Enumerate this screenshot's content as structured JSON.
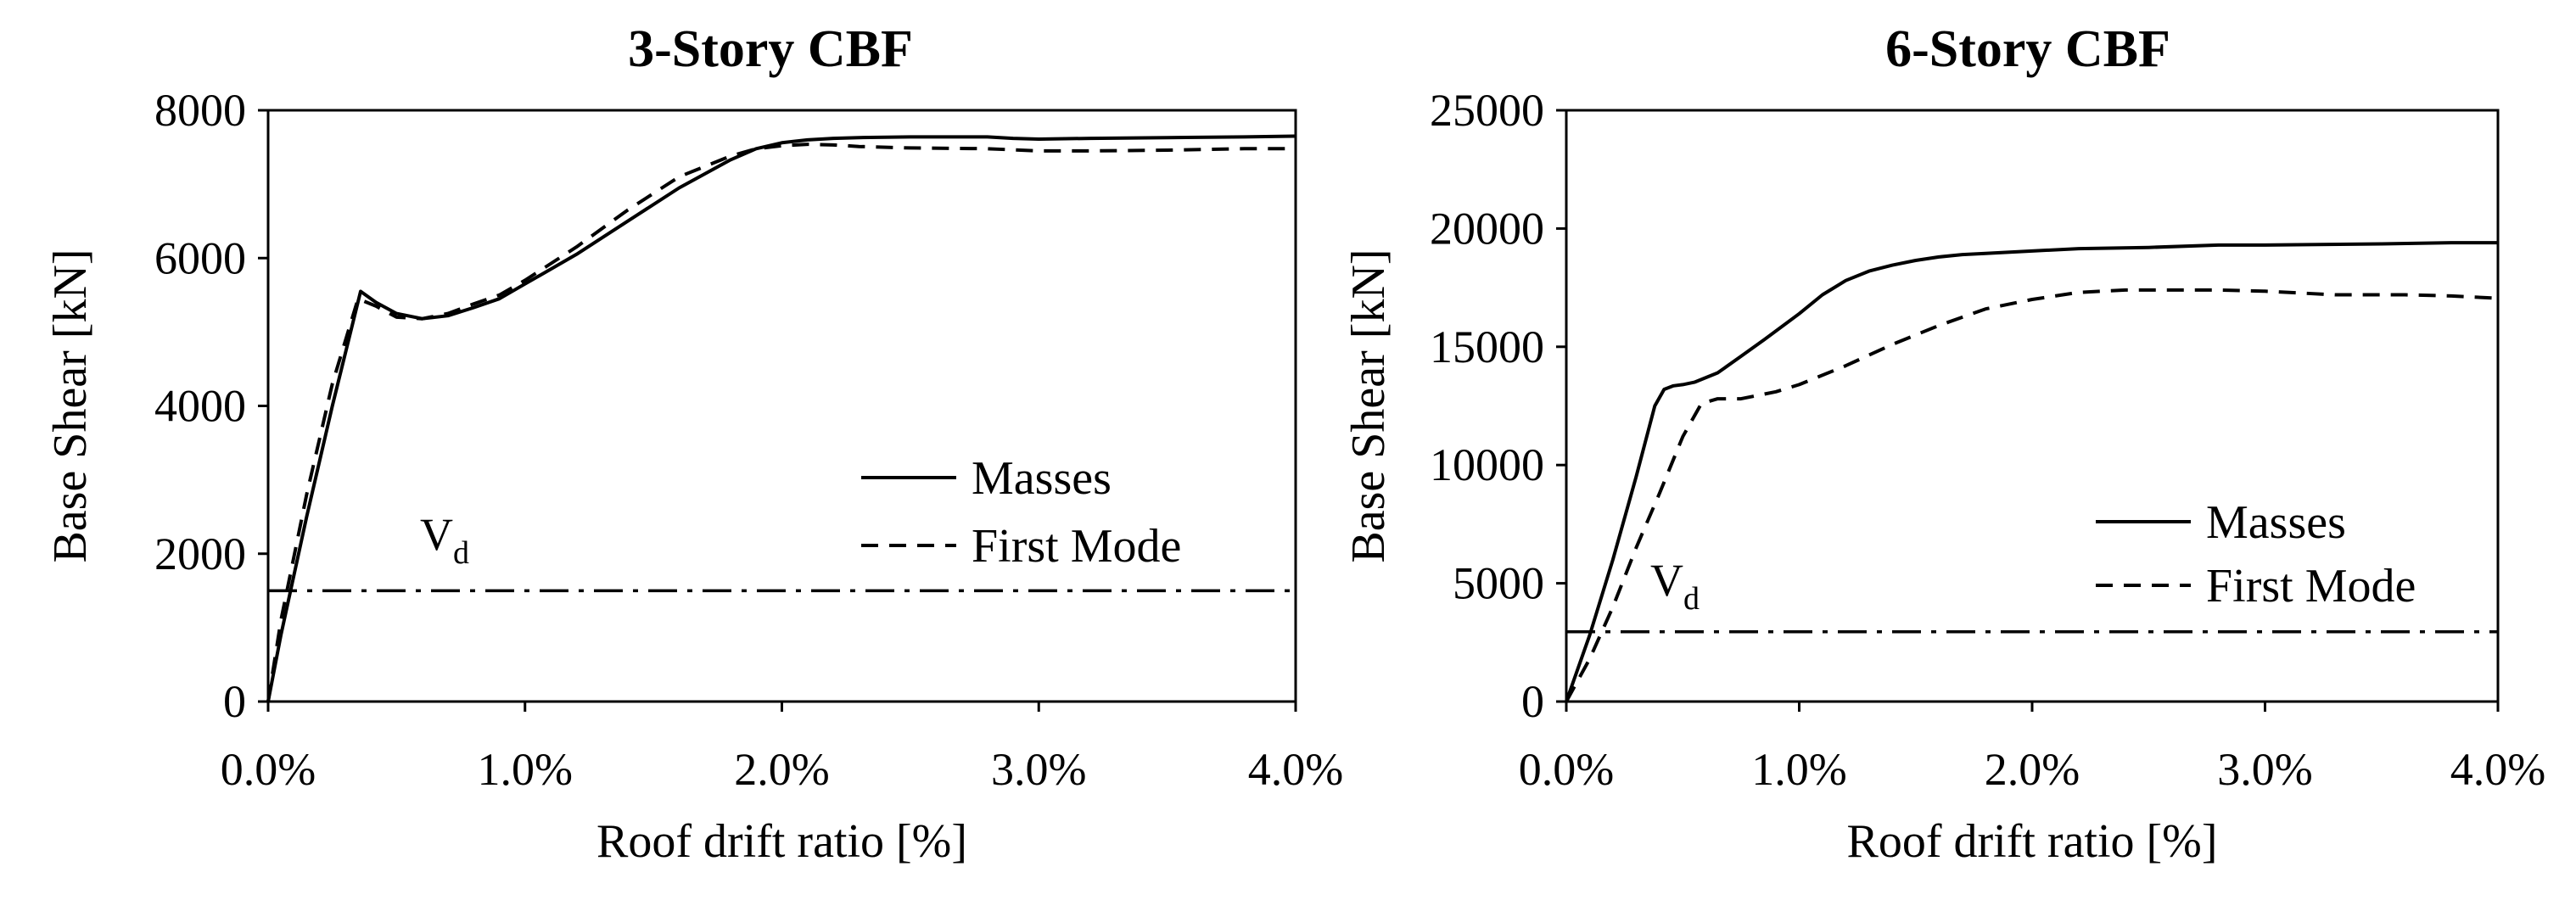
{
  "chart_data": [
    {
      "type": "line",
      "title": "3-Story CBF",
      "xlabel": "Roof drift ratio [%]",
      "ylabel": "Base Shear [kN]",
      "xlim": [
        0,
        4
      ],
      "ylim": [
        0,
        8000
      ],
      "x_ticks": [
        "0.0%",
        "1.0%",
        "2.0%",
        "3.0%",
        "4.0%"
      ],
      "y_ticks": [
        "0",
        "2000",
        "4000",
        "6000",
        "8000"
      ],
      "grid": false,
      "legend_position": "center-right",
      "series": [
        {
          "name": "Masses",
          "style": "solid",
          "x": [
            0,
            0.05,
            0.15,
            0.25,
            0.36,
            0.42,
            0.5,
            0.6,
            0.7,
            0.8,
            0.9,
            1.0,
            1.2,
            1.4,
            1.6,
            1.8,
            1.9,
            2.0,
            2.1,
            2.2,
            2.3,
            2.5,
            2.8,
            2.9,
            3.0,
            3.2,
            3.5,
            3.8,
            4.0
          ],
          "y": [
            0,
            900,
            2500,
            4000,
            5550,
            5400,
            5250,
            5180,
            5220,
            5330,
            5450,
            5650,
            6050,
            6500,
            6950,
            7330,
            7480,
            7560,
            7600,
            7620,
            7630,
            7640,
            7640,
            7620,
            7610,
            7620,
            7630,
            7640,
            7650
          ]
        },
        {
          "name": "First Mode",
          "style": "dashed",
          "x": [
            0,
            0.05,
            0.15,
            0.25,
            0.35,
            0.42,
            0.5,
            0.6,
            0.7,
            0.8,
            0.9,
            1.0,
            1.2,
            1.4,
            1.6,
            1.8,
            1.9,
            2.0,
            2.1,
            2.2,
            2.3,
            2.5,
            2.8,
            3.0,
            3.2,
            3.5,
            3.8,
            4.0
          ],
          "y": [
            0,
            1100,
            2800,
            4300,
            5450,
            5350,
            5200,
            5180,
            5250,
            5380,
            5500,
            5700,
            6150,
            6650,
            7100,
            7380,
            7480,
            7520,
            7540,
            7530,
            7510,
            7490,
            7480,
            7450,
            7450,
            7460,
            7480,
            7480
          ]
        }
      ],
      "reference_lines": [
        {
          "label": "V",
          "label_sub": "d",
          "y": 1500,
          "style": "dash-dot"
        }
      ]
    },
    {
      "type": "line",
      "title": "6-Story CBF",
      "xlabel": "Roof drift ratio [%]",
      "ylabel": "Base Shear [kN]",
      "xlim": [
        0,
        4
      ],
      "ylim": [
        0,
        25000
      ],
      "x_ticks": [
        "0.0%",
        "1.0%",
        "2.0%",
        "3.0%",
        "4.0%"
      ],
      "y_ticks": [
        "0",
        "5000",
        "10000",
        "15000",
        "20000",
        "25000"
      ],
      "grid": false,
      "legend_position": "lower-right",
      "series": [
        {
          "name": "Masses",
          "style": "solid",
          "x": [
            0,
            0.1,
            0.2,
            0.3,
            0.38,
            0.42,
            0.46,
            0.5,
            0.55,
            0.65,
            0.75,
            0.85,
            1.0,
            1.1,
            1.2,
            1.3,
            1.4,
            1.5,
            1.6,
            1.7,
            1.8,
            2.0,
            2.2,
            2.5,
            2.8,
            3.0,
            3.5,
            3.8,
            4.0
          ],
          "y": [
            0,
            2800,
            6000,
            9500,
            12500,
            13200,
            13350,
            13400,
            13500,
            13900,
            14600,
            15300,
            16400,
            17200,
            17800,
            18200,
            18450,
            18650,
            18800,
            18900,
            18950,
            19050,
            19150,
            19200,
            19300,
            19300,
            19350,
            19400,
            19400
          ]
        },
        {
          "name": "First Mode",
          "style": "dashed",
          "x": [
            0,
            0.1,
            0.2,
            0.3,
            0.4,
            0.5,
            0.58,
            0.65,
            0.75,
            0.9,
            1.0,
            1.2,
            1.4,
            1.6,
            1.8,
            2.0,
            2.2,
            2.4,
            2.6,
            2.8,
            3.0,
            3.3,
            3.6,
            3.8,
            4.0
          ],
          "y": [
            0,
            1800,
            4000,
            6500,
            8800,
            11200,
            12600,
            12800,
            12800,
            13100,
            13400,
            14200,
            15100,
            15900,
            16600,
            17000,
            17300,
            17400,
            17400,
            17400,
            17350,
            17200,
            17200,
            17150,
            17050
          ]
        }
      ],
      "reference_lines": [
        {
          "label": "V",
          "label_sub": "d",
          "y": 2950,
          "style": "dash-dot"
        }
      ]
    }
  ]
}
